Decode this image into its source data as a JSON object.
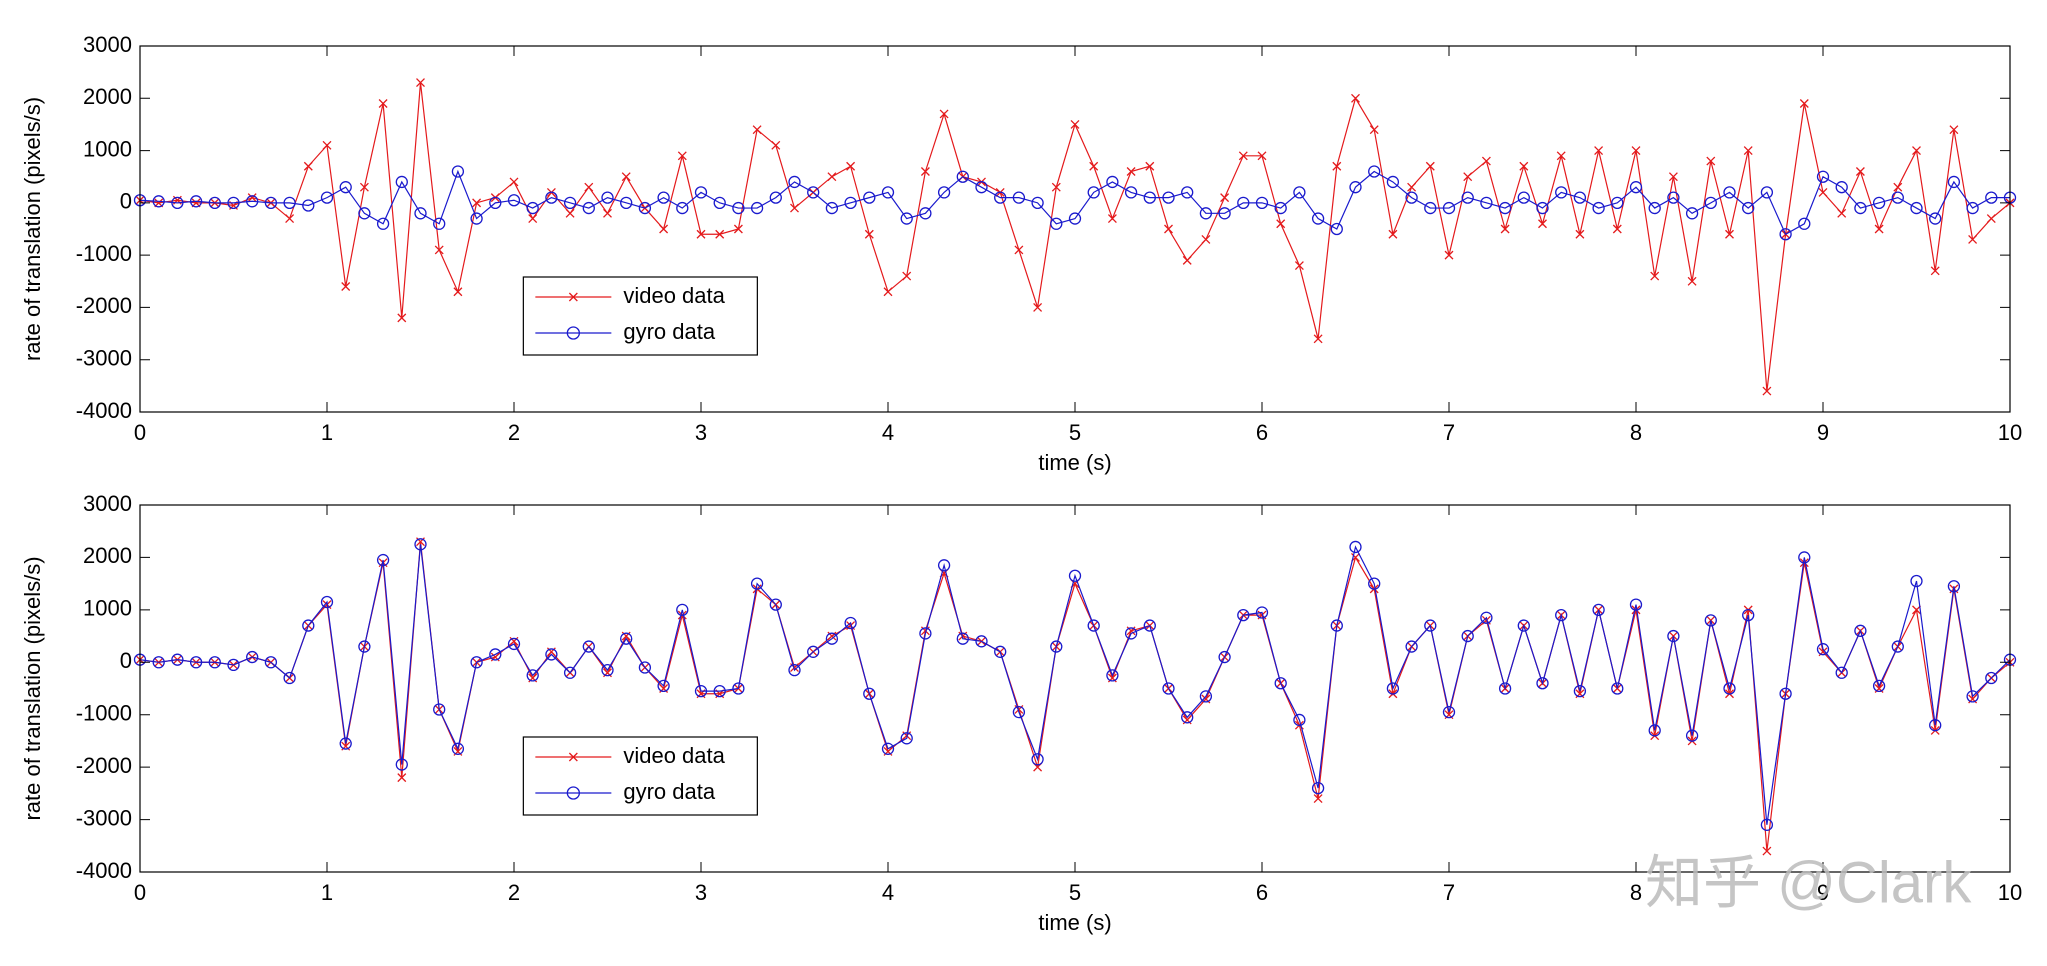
{
  "chart_data": [
    {
      "type": "line",
      "xlabel": "time (s)",
      "ylabel": "rate of translation (pixels/s)",
      "x": [
        0,
        0.1,
        0.2,
        0.3,
        0.4,
        0.5,
        0.6,
        0.7,
        0.8,
        0.9,
        1,
        1.1,
        1.2,
        1.3,
        1.4,
        1.5,
        1.6,
        1.7,
        1.8,
        1.9,
        2,
        2.1,
        2.2,
        2.3,
        2.4,
        2.5,
        2.6,
        2.7,
        2.8,
        2.9,
        3,
        3.1,
        3.2,
        3.3,
        3.4,
        3.5,
        3.6,
        3.7,
        3.8,
        3.9,
        4,
        4.1,
        4.2,
        4.3,
        4.4,
        4.5,
        4.6,
        4.7,
        4.8,
        4.9,
        5,
        5.1,
        5.2,
        5.3,
        5.4,
        5.5,
        5.6,
        5.7,
        5.8,
        5.9,
        6,
        6.1,
        6.2,
        6.3,
        6.4,
        6.5,
        6.6,
        6.7,
        6.8,
        6.9,
        7,
        7.1,
        7.2,
        7.3,
        7.4,
        7.5,
        7.6,
        7.7,
        7.8,
        7.9,
        8,
        8.1,
        8.2,
        8.3,
        8.4,
        8.5,
        8.6,
        8.7,
        8.8,
        8.9,
        9,
        9.1,
        9.2,
        9.3,
        9.4,
        9.5,
        9.6,
        9.7,
        9.8,
        9.9,
        10
      ],
      "series": [
        {
          "name": "video data",
          "color": "#e41a1c",
          "marker": "x",
          "values": [
            50,
            0,
            50,
            0,
            0,
            -50,
            100,
            0,
            -300,
            700,
            1100,
            -1600,
            300,
            1900,
            -2200,
            2300,
            -900,
            -1700,
            0,
            100,
            400,
            -300,
            200,
            -200,
            300,
            -200,
            500,
            -100,
            -500,
            900,
            -600,
            -600,
            -500,
            1400,
            1100,
            -100,
            200,
            500,
            700,
            -600,
            -1700,
            -1400,
            600,
            1700,
            500,
            400,
            200,
            -900,
            -2000,
            300,
            1500,
            700,
            -300,
            600,
            700,
            -500,
            -1100,
            -700,
            100,
            900,
            900,
            -400,
            -1200,
            -2600,
            700,
            2000,
            1400,
            -600,
            300,
            700,
            -1000,
            500,
            800,
            -500,
            700,
            -400,
            900,
            -600,
            1000,
            -500,
            1000,
            -1400,
            500,
            -1500,
            800,
            -600,
            1000,
            -3600,
            -600,
            1900,
            200,
            -200,
            600,
            -500,
            300,
            1000,
            -1300,
            1400,
            -700,
            -300,
            0
          ]
        },
        {
          "name": "gyro data",
          "color": "#1a1acd",
          "marker": "o",
          "values": [
            50,
            30,
            0,
            30,
            0,
            0,
            30,
            0,
            0,
            -50,
            100,
            300,
            -200,
            -400,
            400,
            -200,
            -400,
            600,
            -300,
            0,
            50,
            -100,
            100,
            0,
            -100,
            100,
            0,
            -100,
            100,
            -100,
            200,
            0,
            -100,
            -100,
            100,
            400,
            200,
            -100,
            0,
            100,
            200,
            -300,
            -200,
            200,
            500,
            300,
            100,
            100,
            0,
            -400,
            -300,
            200,
            400,
            200,
            100,
            100,
            200,
            -200,
            -200,
            0,
            0,
            -100,
            200,
            -300,
            -500,
            300,
            600,
            400,
            100,
            -100,
            -100,
            100,
            0,
            -100,
            100,
            -100,
            200,
            100,
            -100,
            0,
            300,
            -100,
            100,
            -200,
            0,
            200,
            -100,
            200,
            -600,
            -400,
            500,
            300,
            -100,
            0,
            100,
            -100,
            -300,
            400,
            -100,
            100,
            100
          ]
        }
      ],
      "xlim": [
        0,
        10
      ],
      "xticks": [
        0,
        1,
        2,
        3,
        4,
        5,
        6,
        7,
        8,
        9,
        10
      ],
      "ylim": [
        -4000,
        3000
      ],
      "yticks": [
        -4000,
        -3000,
        -2000,
        -1000,
        0,
        1000,
        2000,
        3000
      ],
      "grid": false,
      "legend": "lower left"
    },
    {
      "type": "line",
      "xlabel": "time (s)",
      "ylabel": "rate of translation (pixels/s)",
      "x": [
        0,
        0.1,
        0.2,
        0.3,
        0.4,
        0.5,
        0.6,
        0.7,
        0.8,
        0.9,
        1,
        1.1,
        1.2,
        1.3,
        1.4,
        1.5,
        1.6,
        1.7,
        1.8,
        1.9,
        2,
        2.1,
        2.2,
        2.3,
        2.4,
        2.5,
        2.6,
        2.7,
        2.8,
        2.9,
        3,
        3.1,
        3.2,
        3.3,
        3.4,
        3.5,
        3.6,
        3.7,
        3.8,
        3.9,
        4,
        4.1,
        4.2,
        4.3,
        4.4,
        4.5,
        4.6,
        4.7,
        4.8,
        4.9,
        5,
        5.1,
        5.2,
        5.3,
        5.4,
        5.5,
        5.6,
        5.7,
        5.8,
        5.9,
        6,
        6.1,
        6.2,
        6.3,
        6.4,
        6.5,
        6.6,
        6.7,
        6.8,
        6.9,
        7,
        7.1,
        7.2,
        7.3,
        7.4,
        7.5,
        7.6,
        7.7,
        7.8,
        7.9,
        8,
        8.1,
        8.2,
        8.3,
        8.4,
        8.5,
        8.6,
        8.7,
        8.8,
        8.9,
        9,
        9.1,
        9.2,
        9.3,
        9.4,
        9.5,
        9.6,
        9.7,
        9.8,
        9.9,
        10
      ],
      "series": [
        {
          "name": "video data",
          "color": "#e41a1c",
          "marker": "x",
          "values": [
            50,
            0,
            50,
            0,
            0,
            -50,
            100,
            0,
            -300,
            700,
            1100,
            -1600,
            300,
            1900,
            -2200,
            2300,
            -900,
            -1700,
            0,
            100,
            400,
            -300,
            200,
            -200,
            300,
            -200,
            500,
            -100,
            -500,
            900,
            -600,
            -600,
            -500,
            1400,
            1100,
            -100,
            200,
            500,
            700,
            -600,
            -1700,
            -1400,
            600,
            1700,
            500,
            400,
            200,
            -900,
            -2000,
            300,
            1500,
            700,
            -300,
            600,
            700,
            -500,
            -1100,
            -700,
            100,
            900,
            900,
            -400,
            -1200,
            -2600,
            700,
            2000,
            1400,
            -600,
            300,
            700,
            -1000,
            500,
            800,
            -500,
            700,
            -400,
            900,
            -600,
            1000,
            -500,
            1000,
            -1400,
            500,
            -1500,
            800,
            -600,
            1000,
            -3600,
            -600,
            1900,
            200,
            -200,
            600,
            -500,
            300,
            1000,
            -1300,
            1400,
            -700,
            -300,
            0
          ]
        },
        {
          "name": "gyro data",
          "color": "#1a1acd",
          "marker": "o",
          "values": [
            50,
            0,
            50,
            0,
            0,
            -50,
            100,
            0,
            -300,
            700,
            1150,
            -1550,
            300,
            1950,
            -1950,
            2250,
            -900,
            -1650,
            0,
            150,
            350,
            -250,
            150,
            -200,
            300,
            -150,
            450,
            -100,
            -450,
            1000,
            -550,
            -550,
            -500,
            1500,
            1100,
            -150,
            200,
            450,
            750,
            -600,
            -1650,
            -1450,
            550,
            1850,
            450,
            400,
            200,
            -950,
            -1850,
            300,
            1650,
            700,
            -250,
            550,
            700,
            -500,
            -1050,
            -650,
            100,
            900,
            950,
            -400,
            -1100,
            -2400,
            700,
            2200,
            1500,
            -500,
            300,
            700,
            -950,
            500,
            850,
            -500,
            700,
            -400,
            900,
            -550,
            1000,
            -500,
            1100,
            -1300,
            500,
            -1400,
            800,
            -500,
            900,
            -3100,
            -600,
            2000,
            250,
            -200,
            600,
            -450,
            300,
            1550,
            -1200,
            1450,
            -650,
            -300,
            50
          ]
        }
      ],
      "xlim": [
        0,
        10
      ],
      "xticks": [
        0,
        1,
        2,
        3,
        4,
        5,
        6,
        7,
        8,
        9,
        10
      ],
      "ylim": [
        -4000,
        3000
      ],
      "yticks": [
        -4000,
        -3000,
        -2000,
        -1000,
        0,
        1000,
        2000,
        3000
      ],
      "grid": false,
      "legend": "lower left"
    }
  ],
  "watermark": "知乎 @Clark"
}
